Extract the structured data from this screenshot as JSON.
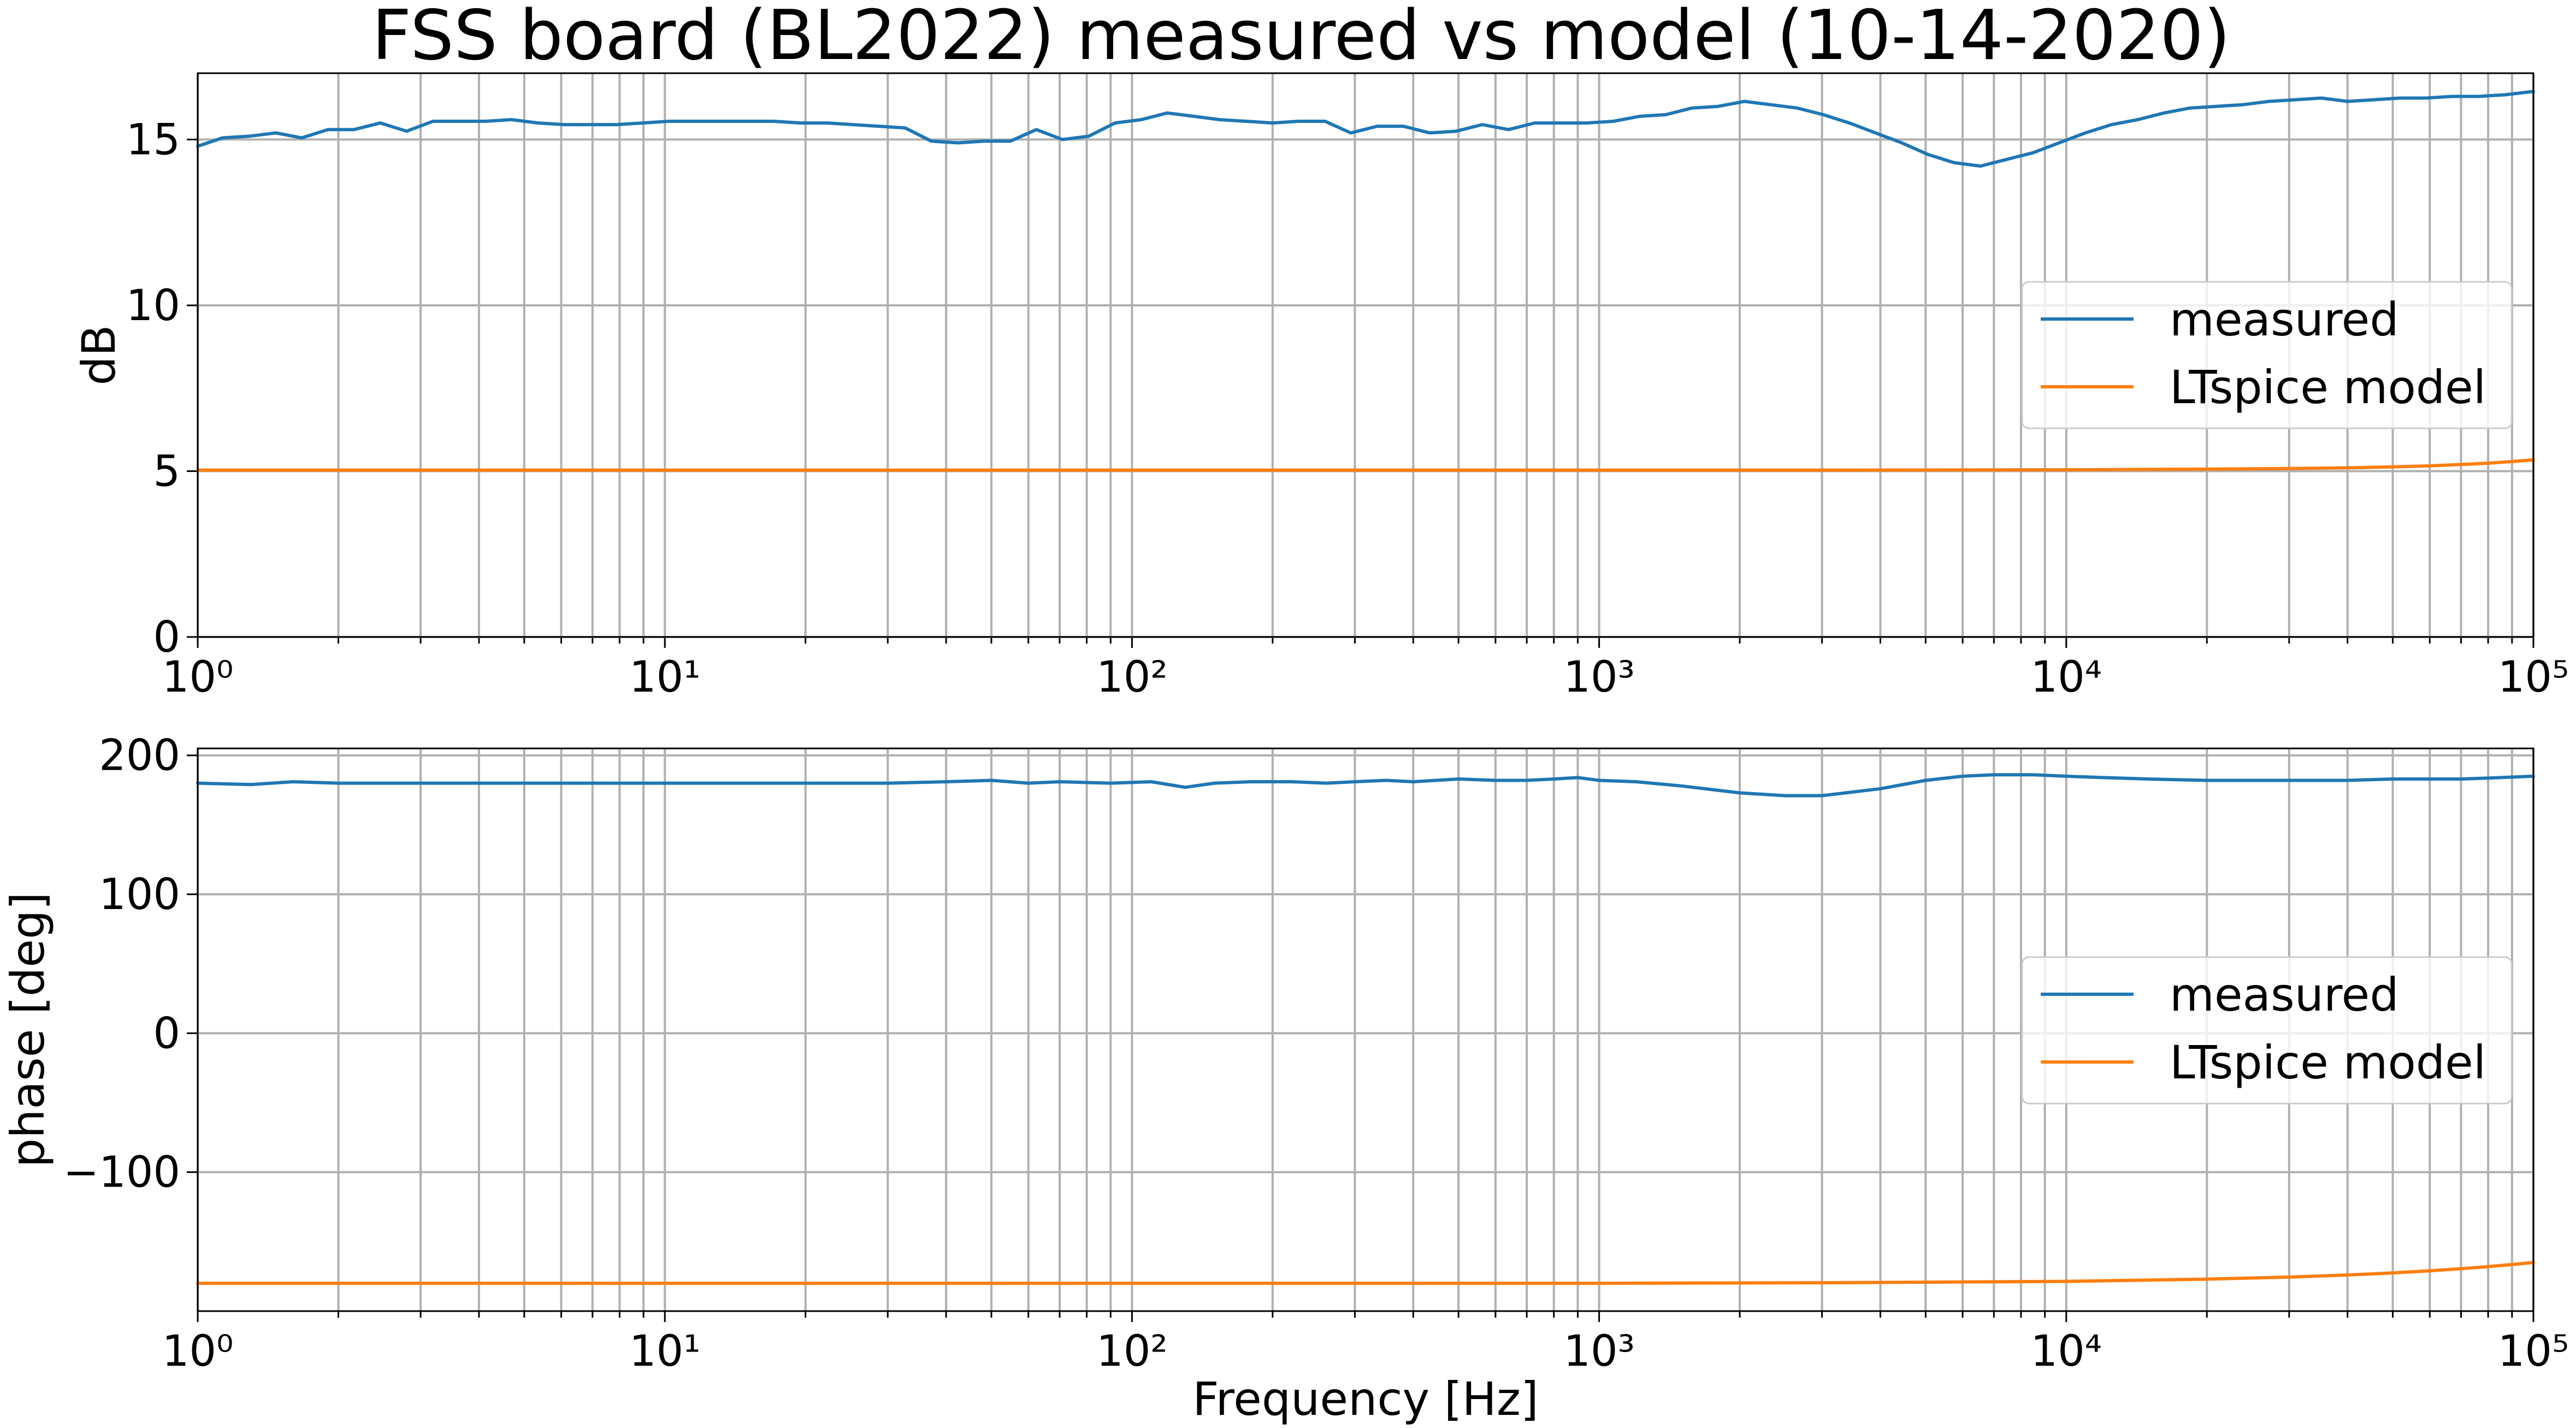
{
  "title": "FSS board (BL2022) measured vs model (10-14-2020)",
  "colors": {
    "measured": "#1f77b4",
    "model": "#ff7f0e",
    "grid": "#b0b0b0"
  },
  "chart_data": [
    {
      "type": "line",
      "xscale": "log",
      "xlim": [
        1,
        100000
      ],
      "ylim": [
        0,
        17
      ],
      "ylabel": "dB",
      "xlabel": "",
      "grid": true,
      "legend": "center-right",
      "x_ticks": [
        1,
        10,
        100,
        1000,
        10000,
        100000
      ],
      "y_ticks": [
        0,
        5,
        10,
        15
      ],
      "y_tick_labels": [
        "0",
        "5",
        "10",
        "15"
      ],
      "series": [
        {
          "name": "measured",
          "color": "#1f77b4",
          "x": [
            1,
            1.13,
            1.29,
            1.47,
            1.67,
            1.9,
            2.16,
            2.46,
            2.8,
            3.19,
            3.63,
            4.13,
            4.7,
            5.35,
            6.09,
            6.93,
            7.88,
            8.97,
            10.2,
            11.6,
            13.2,
            15.1,
            17.1,
            19.5,
            22.2,
            25.3,
            28.7,
            32.7,
            37.2,
            42.4,
            48.2,
            54.9,
            62.4,
            71,
            80.8,
            92,
            104.7,
            119,
            135.5,
            154,
            175.5,
            200,
            227,
            259,
            294,
            335,
            381,
            434,
            494,
            562,
            640,
            728,
            828,
            943,
            1073,
            1221,
            1389,
            1581,
            1799,
            2048,
            2330,
            2651,
            3017,
            3433,
            3906,
            4445,
            5058,
            5756,
            6551,
            7455,
            8483,
            9653,
            10985,
            12500,
            14225,
            16188,
            18421,
            20964,
            23857,
            27149,
            30896,
            35160,
            40012,
            45534,
            51817,
            58968,
            67105,
            76366,
            86904,
            100000
          ],
          "values": [
            14.8,
            15.05,
            15.1,
            15.2,
            15.05,
            15.3,
            15.3,
            15.5,
            15.25,
            15.55,
            15.55,
            15.55,
            15.6,
            15.5,
            15.45,
            15.45,
            15.45,
            15.5,
            15.55,
            15.55,
            15.55,
            15.55,
            15.55,
            15.5,
            15.5,
            15.45,
            15.4,
            15.35,
            14.95,
            14.9,
            14.95,
            14.95,
            15.3,
            15.0,
            15.1,
            15.5,
            15.6,
            15.8,
            15.7,
            15.6,
            15.55,
            15.5,
            15.55,
            15.55,
            15.2,
            15.4,
            15.4,
            15.2,
            15.25,
            15.45,
            15.3,
            15.5,
            15.5,
            15.5,
            15.55,
            15.7,
            15.75,
            15.95,
            16.0,
            16.15,
            16.05,
            15.95,
            15.75,
            15.5,
            15.2,
            14.9,
            14.55,
            14.3,
            14.2,
            14.4,
            14.6,
            14.9,
            15.2,
            15.45,
            15.6,
            15.8,
            15.95,
            16.0,
            16.05,
            16.15,
            16.2,
            16.25,
            16.15,
            16.2,
            16.25,
            16.25,
            16.3,
            16.3,
            16.35,
            16.45
          ]
        },
        {
          "name": "LTspice model",
          "color": "#ff7f0e",
          "x": [
            1,
            10,
            100,
            1000,
            3000,
            10000,
            20000,
            30000,
            40000,
            50000,
            60000,
            70000,
            80000,
            90000,
            100000
          ],
          "values": [
            5.03,
            5.03,
            5.03,
            5.03,
            5.03,
            5.04,
            5.06,
            5.08,
            5.1,
            5.13,
            5.16,
            5.2,
            5.24,
            5.29,
            5.34
          ]
        }
      ]
    },
    {
      "type": "line",
      "xscale": "log",
      "xlim": [
        1,
        100000
      ],
      "ylim": [
        -200,
        205
      ],
      "ylabel": "phase [deg]",
      "xlabel": "Frequency [Hz]",
      "grid": true,
      "legend": "center-right",
      "x_ticks": [
        1,
        10,
        100,
        1000,
        10000,
        100000
      ],
      "y_ticks": [
        -100,
        0,
        100,
        200
      ],
      "y_tick_labels": [
        "−100",
        "0",
        "100",
        "200"
      ],
      "series": [
        {
          "name": "measured",
          "color": "#1f77b4",
          "x": [
            1,
            1.3,
            1.6,
            2,
            2.5,
            3,
            4,
            5,
            7,
            10,
            15,
            20,
            30,
            40,
            50,
            60,
            70,
            90,
            110,
            130,
            150,
            180,
            220,
            260,
            300,
            350,
            400,
            500,
            600,
            700,
            800,
            900,
            1000,
            1200,
            1500,
            2000,
            2500,
            3000,
            4000,
            5000,
            6000,
            7000,
            8500,
            10000,
            12000,
            15000,
            20000,
            25000,
            30000,
            40000,
            50000,
            60000,
            70000,
            85000,
            100000
          ],
          "values": [
            180,
            179,
            181,
            180,
            180,
            180,
            180,
            180,
            180,
            180,
            180,
            180,
            180,
            181,
            182,
            180,
            181,
            180,
            181,
            177,
            180,
            181,
            181,
            180,
            181,
            182,
            181,
            183,
            182,
            182,
            183,
            184,
            182,
            181,
            178,
            173,
            171,
            171,
            176,
            182,
            185,
            186,
            186,
            185,
            184,
            183,
            182,
            182,
            182,
            182,
            183,
            183,
            183,
            184,
            185
          ]
        },
        {
          "name": "LTspice model",
          "color": "#ff7f0e",
          "x": [
            1,
            10,
            100,
            1000,
            3000,
            10000,
            20000,
            30000,
            40000,
            50000,
            60000,
            70000,
            80000,
            90000,
            100000
          ],
          "values": [
            -180,
            -180,
            -180,
            -180,
            -179.6,
            -178.6,
            -177,
            -175.5,
            -174,
            -172.5,
            -171,
            -169.5,
            -168,
            -166.5,
            -165
          ]
        }
      ]
    }
  ]
}
